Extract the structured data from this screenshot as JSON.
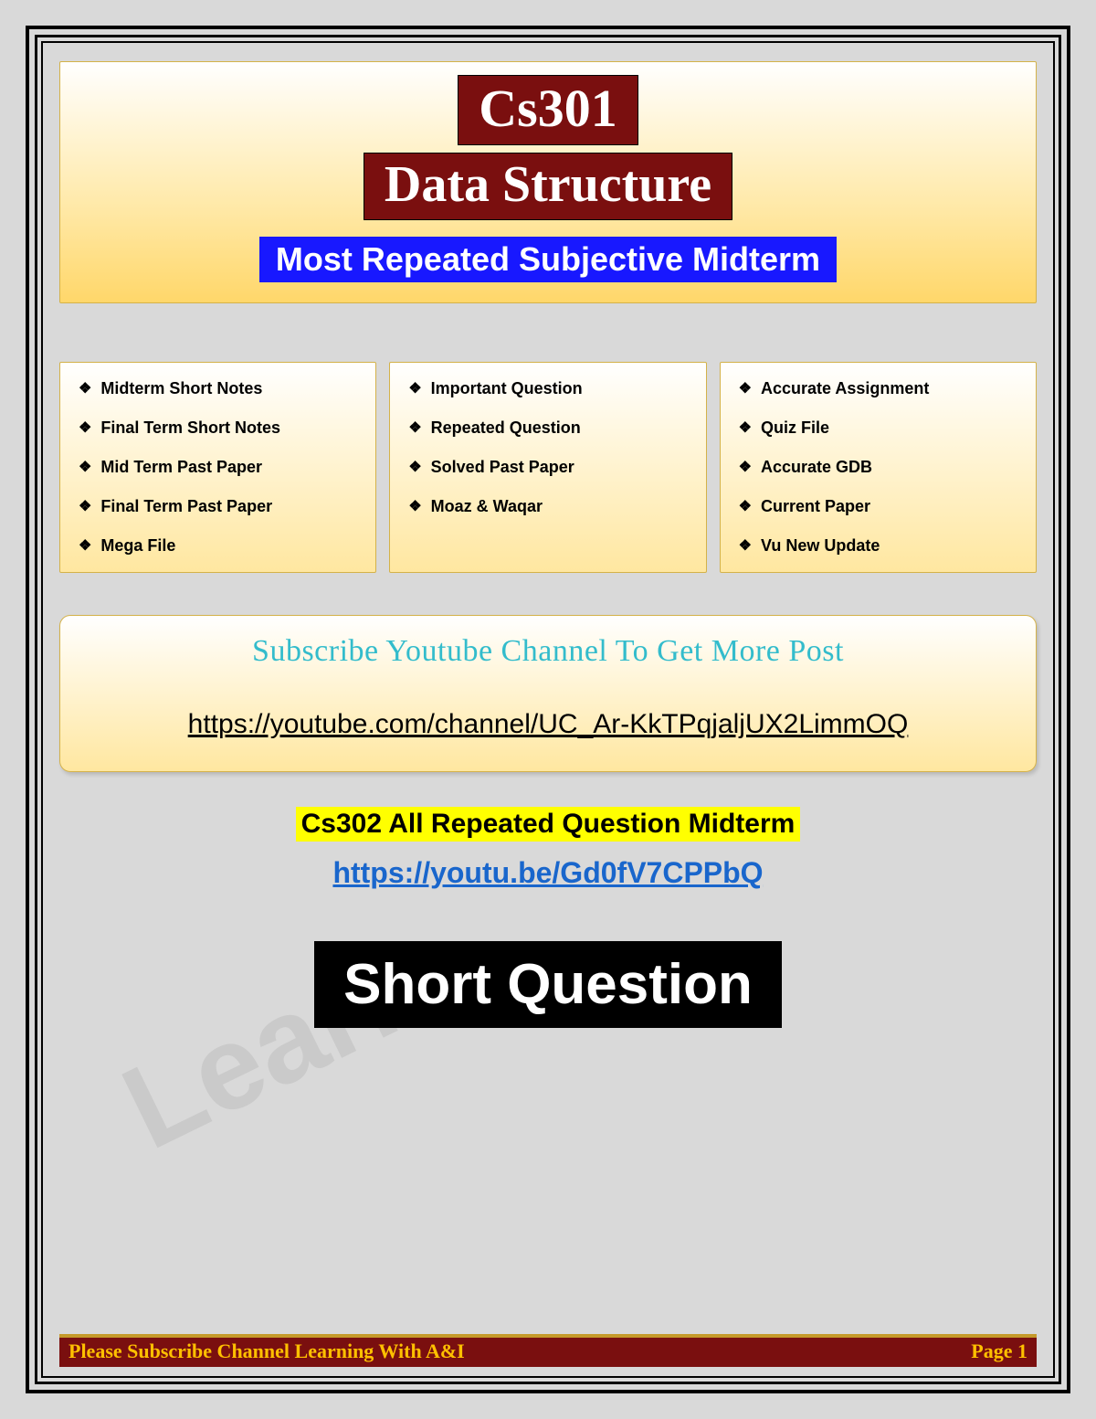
{
  "header": {
    "course_code": "Cs301",
    "course_name": "Data Structure",
    "subtitle": "Most Repeated Subjective Midterm"
  },
  "columns": {
    "col1": [
      "Midterm Short Notes",
      "Final Term Short Notes",
      "Mid Term Past Paper",
      "Final Term Past Paper",
      "Mega File"
    ],
    "col2": [
      "Important Question",
      "Repeated Question",
      "Solved Past Paper",
      "Moaz & Waqar"
    ],
    "col3": [
      "Accurate Assignment",
      "Quiz File",
      "Accurate GDB",
      "Current Paper",
      "Vu New Update"
    ]
  },
  "subscribe": {
    "title": "Subscribe Youtube Channel To Get More Post",
    "url": "https://youtube.com/channel/UC_Ar-KkTPqjaljUX2LimmOQ"
  },
  "promo": {
    "highlight": "Cs302 All Repeated Question Midterm",
    "link": "https://youtu.be/Gd0fV7CPPbQ"
  },
  "section_title": "Short Question",
  "watermark": "Learn",
  "footer": {
    "left": "Please Subscribe Channel Learning With A&I",
    "right": "Page 1"
  },
  "bullet_glyph": "❖"
}
